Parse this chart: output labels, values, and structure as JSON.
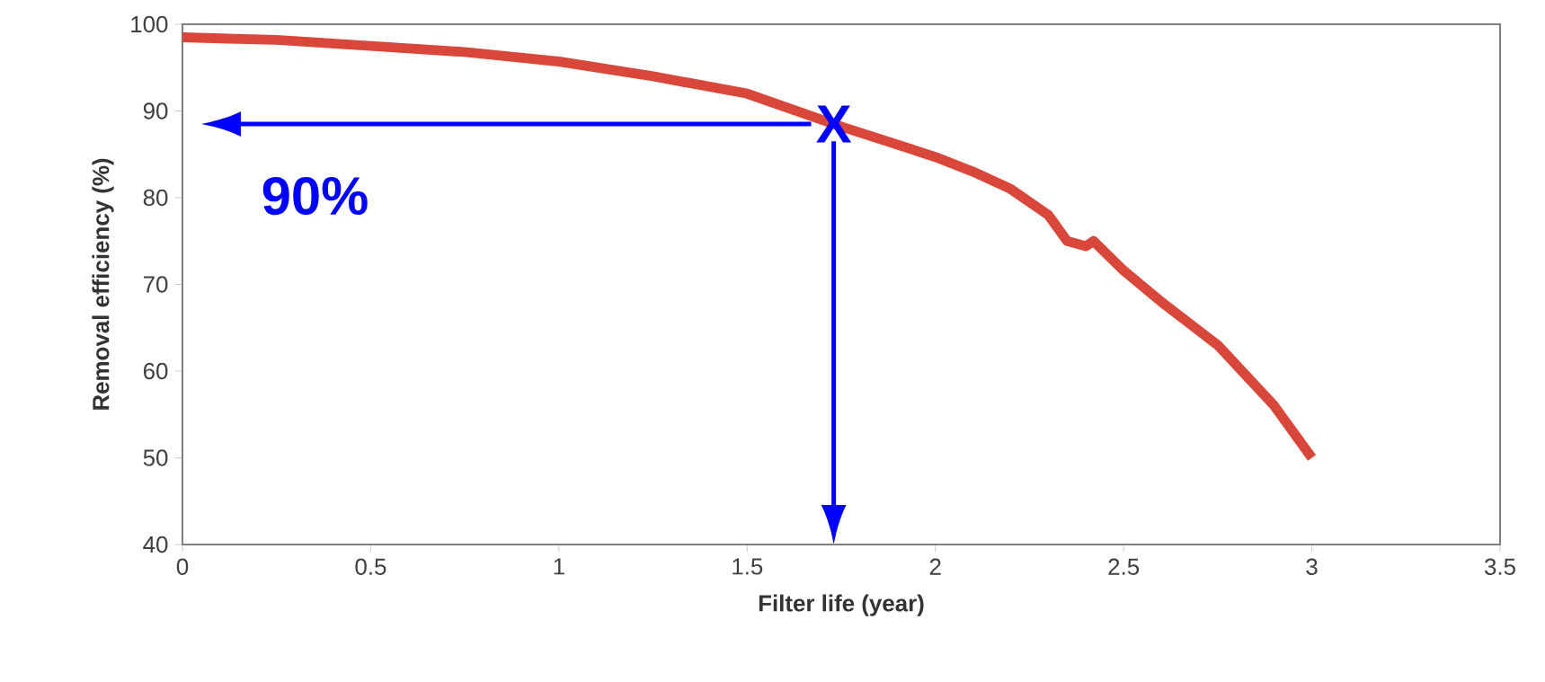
{
  "chart_data": {
    "type": "line",
    "xlabel": "Filter life (year)",
    "ylabel": "Removal efficiency (%)",
    "x": [
      0,
      0.25,
      0.5,
      0.75,
      1,
      1.25,
      1.5,
      1.75,
      2,
      2.1,
      2.2,
      2.3,
      2.35,
      2.4,
      2.42,
      2.5,
      2.6,
      2.75,
      2.9,
      3
    ],
    "series": [
      {
        "color": "#d9463a",
        "values": [
          98.5,
          98.2,
          97.5,
          96.8,
          95.7,
          94,
          92,
          88.2,
          84.7,
          83,
          81,
          78,
          75,
          74.4,
          75,
          71.6,
          68,
          63,
          56,
          50
        ]
      }
    ],
    "xlim": [
      0,
      3.5
    ],
    "ylim": [
      40,
      100
    ],
    "xticks": [
      0,
      0.5,
      1,
      1.5,
      2,
      2.5,
      3,
      3.5
    ],
    "yticks": [
      40,
      50,
      60,
      70,
      80,
      90,
      100
    ],
    "grid": false,
    "marker": "none",
    "line_style": "solid",
    "annotations": [
      "90%",
      {
        "text": "X",
        "x": 1.73,
        "y": 88.5
      }
    ]
  }
}
